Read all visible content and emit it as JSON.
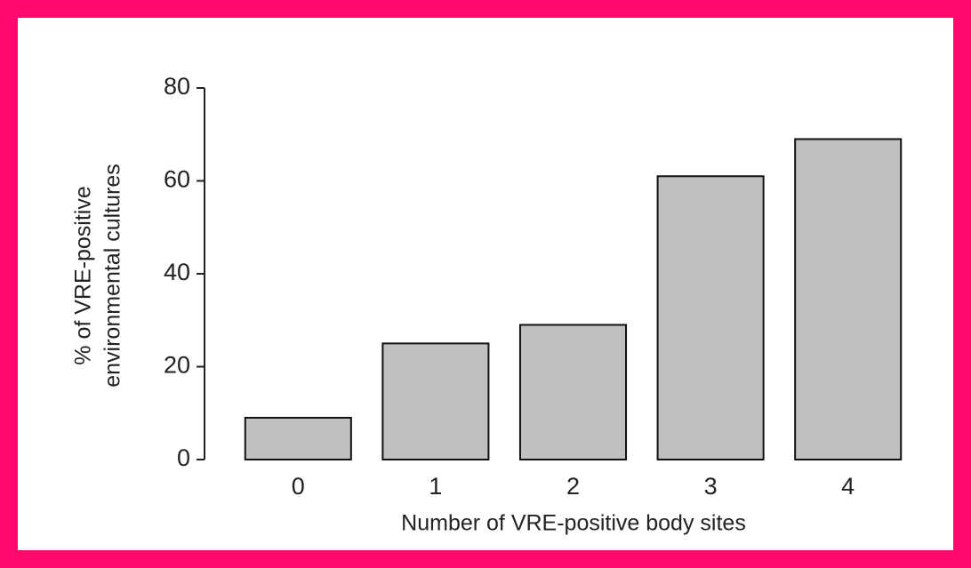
{
  "chart_data": {
    "type": "bar",
    "categories": [
      "0",
      "1",
      "2",
      "3",
      "4"
    ],
    "values": [
      9,
      25,
      29,
      61,
      69
    ],
    "color": "#c0c0c0",
    "xlabel": "Number of VRE-positive body sites",
    "ylabel": [
      "% of VRE-positive",
      "environmental cultures"
    ],
    "ylim": [
      0,
      80
    ],
    "yticks": [
      0,
      20,
      40,
      60,
      80
    ],
    "grid": false
  }
}
